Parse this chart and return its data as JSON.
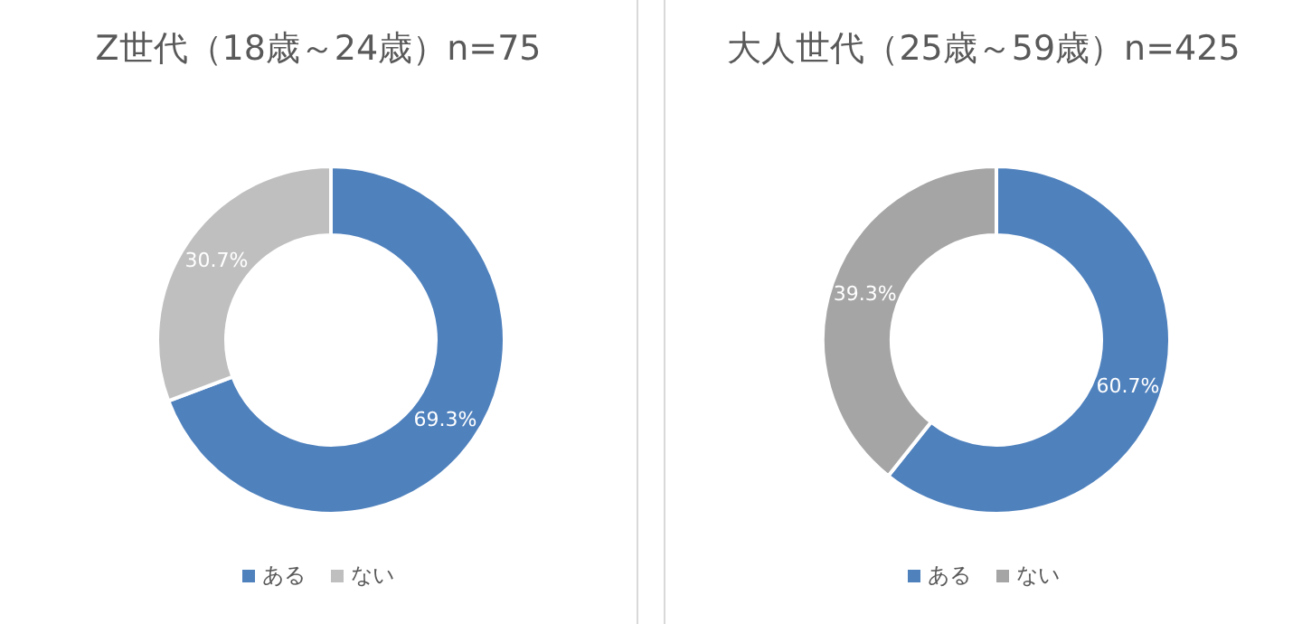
{
  "chart_data": [
    {
      "type": "donut",
      "title": "Z世代（18歳～24歳）n=75",
      "categories": [
        "ある",
        "ない"
      ],
      "values": [
        69.3,
        30.7
      ],
      "colors": [
        "#4f81bd",
        "#bfbfbf"
      ],
      "value_labels": [
        "69.3%",
        "30.7%"
      ],
      "legend": "bottom"
    },
    {
      "type": "donut",
      "title": "大人世代（25歳～59歳）n=425",
      "categories": [
        "ある",
        "ない"
      ],
      "values": [
        60.7,
        39.3
      ],
      "colors": [
        "#4f81bd",
        "#a5a5a5"
      ],
      "value_labels": [
        "60.7%",
        "39.3%"
      ],
      "legend": "bottom"
    }
  ]
}
